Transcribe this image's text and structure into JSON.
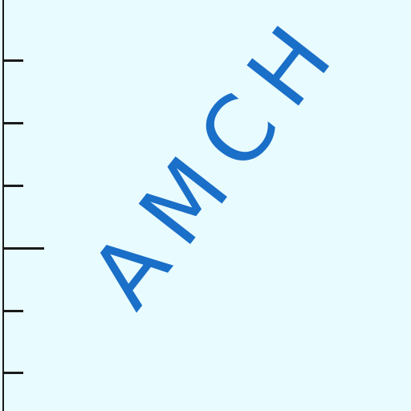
{
  "stamp": {
    "text": "AMCH"
  },
  "ruler": {
    "ticks": [
      {
        "kind": "minor"
      },
      {
        "kind": "minor"
      },
      {
        "kind": "minor"
      },
      {
        "kind": "major"
      },
      {
        "kind": "minor"
      },
      {
        "kind": "minor"
      }
    ]
  },
  "colors": {
    "background": "#e8fbfe",
    "stamp": "#1a6fc8",
    "ruler": "#1b1b1b"
  }
}
